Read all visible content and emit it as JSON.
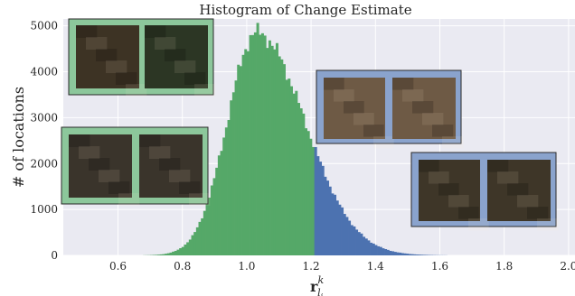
{
  "chart_data": {
    "type": "bar",
    "title": "Histogram of Change Estimate",
    "xlabel": "r",
    "xlabel_sup": "k",
    "xlabel_sub": "l",
    "xlabel_subsub": "i",
    "ylabel": "# of locations",
    "xlim": [
      0.43,
      2.02
    ],
    "ylim": [
      0,
      5150
    ],
    "xticks": [
      "0.6",
      "0.8",
      "1.0",
      "1.2",
      "1.4",
      "1.6",
      "1.8",
      "2.0"
    ],
    "yticks": [
      "0",
      "1000",
      "2000",
      "3000",
      "4000",
      "5000"
    ],
    "grid": true,
    "threshold": 1.21,
    "distribution": {
      "mode": 1.03,
      "peak_count": 4850,
      "left_spread": 0.09,
      "right_spread": 0.15,
      "x_start": 0.52,
      "x_end": 2.0,
      "bin_width": 0.0075
    },
    "series": [
      {
        "label_side": "below threshold",
        "color": "#55a868"
      },
      {
        "label_side": "above threshold",
        "color": "#4c72b0"
      }
    ]
  },
  "insets": [
    {
      "id": "farmland-pair",
      "frame_color": "#8cc79b",
      "tone": [
        "#3d3324",
        "#2c3624"
      ]
    },
    {
      "id": "suburb-pair",
      "frame_color": "#8cc79b",
      "tone": [
        "#3a342b",
        "#3a342b"
      ]
    },
    {
      "id": "airport-pair",
      "frame_color": "#8aa3cd",
      "tone": [
        "#6e5a45",
        "#6e5a45"
      ]
    },
    {
      "id": "housing-pair",
      "frame_color": "#8aa3cd",
      "tone": [
        "#3e3628",
        "#3e3628"
      ]
    }
  ]
}
